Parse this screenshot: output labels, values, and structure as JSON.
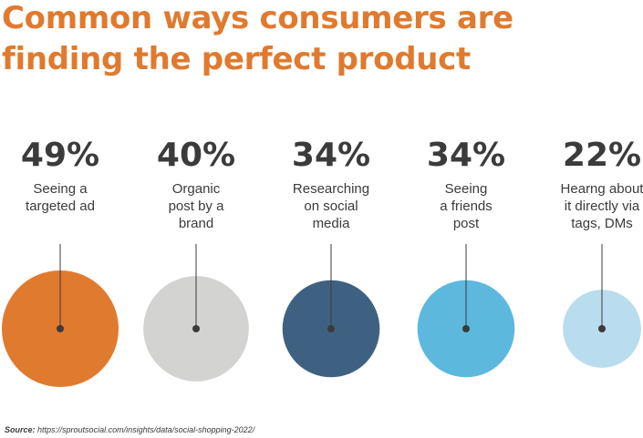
{
  "title_line1": "Common ways consumers are",
  "title_line2": "finding the perfect product",
  "source_label": "Source:",
  "source_url": "https://sproutsocial.com/insights/data/social-shopping-2022/",
  "colors": {
    "title": "#e07a2e",
    "text": "#3b3b3b",
    "line": "#3b3b3b"
  },
  "chart_data": {
    "type": "bubble",
    "title": "Common ways consumers are finding the perfect product",
    "items": [
      {
        "percent_label": "49%",
        "value": 49,
        "label_lines": [
          "Seeing a",
          "targeted ad"
        ],
        "color": "#e07a2e"
      },
      {
        "percent_label": "40%",
        "value": 40,
        "label_lines": [
          "Organic",
          "post by a",
          "brand"
        ],
        "color": "#d3d3d2"
      },
      {
        "percent_label": "34%",
        "value": 34,
        "label_lines": [
          "Researching",
          "on social",
          "media"
        ],
        "color": "#3f6181"
      },
      {
        "percent_label": "34%",
        "value": 34,
        "label_lines": [
          "Seeing",
          "a friends",
          "post"
        ],
        "color": "#5db8de"
      },
      {
        "percent_label": "22%",
        "value": 22,
        "label_lines": [
          "Hearng about",
          "it directly via",
          "tags, DMs"
        ],
        "color": "#b9dcee"
      }
    ]
  }
}
